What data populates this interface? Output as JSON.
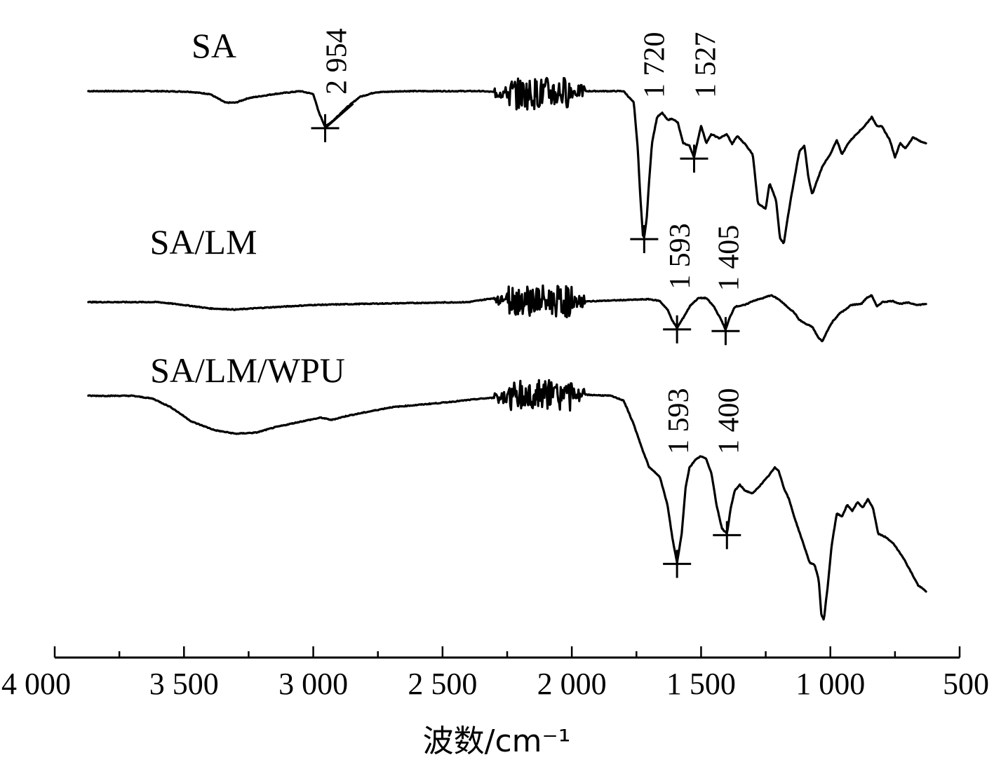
{
  "chart_data": {
    "type": "line",
    "xlabel": "波数/cm⁻¹",
    "xlim": [
      4000,
      500
    ],
    "x_ticks": [
      {
        "value": 4000,
        "label": "4 000"
      },
      {
        "value": 3500,
        "label": "3 500"
      },
      {
        "value": 3000,
        "label": "3 000"
      },
      {
        "value": 2500,
        "label": "2 500"
      },
      {
        "value": 2000,
        "label": "2 000"
      },
      {
        "value": 1500,
        "label": "1 500"
      },
      {
        "value": 1000,
        "label": "1 000"
      },
      {
        "value": 500,
        "label": "500"
      }
    ],
    "ylabel": "",
    "y_axis_shown": false,
    "series": [
      {
        "name": "SA",
        "baseline": 0.0,
        "points": [
          [
            3870,
            0
          ],
          [
            3600,
            0
          ],
          [
            3480,
            -0.01
          ],
          [
            3400,
            -0.05
          ],
          [
            3340,
            -0.2
          ],
          [
            3300,
            -0.2
          ],
          [
            3250,
            -0.12
          ],
          [
            3150,
            -0.05
          ],
          [
            3050,
            0
          ],
          [
            3000,
            -0.05
          ],
          [
            2980,
            -0.35
          ],
          [
            2954,
            -0.62
          ],
          [
            2920,
            -0.5
          ],
          [
            2880,
            -0.32
          ],
          [
            2820,
            -0.1
          ],
          [
            2760,
            -0.02
          ],
          [
            2650,
            0
          ],
          [
            2350,
            0
          ],
          [
            2200,
            -0.05
          ],
          [
            1950,
            0
          ],
          [
            1800,
            0
          ],
          [
            1760,
            -0.2
          ],
          [
            1745,
            -1.0
          ],
          [
            1735,
            -1.85
          ],
          [
            1725,
            -2.5
          ],
          [
            1720,
            -2.55
          ],
          [
            1710,
            -2.2
          ],
          [
            1700,
            -1.5
          ],
          [
            1690,
            -0.9
          ],
          [
            1670,
            -0.45
          ],
          [
            1650,
            -0.38
          ],
          [
            1630,
            -0.5
          ],
          [
            1610,
            -0.48
          ],
          [
            1590,
            -0.55
          ],
          [
            1570,
            -0.9
          ],
          [
            1545,
            -0.95
          ],
          [
            1527,
            -1.15
          ],
          [
            1515,
            -0.9
          ],
          [
            1500,
            -0.6
          ],
          [
            1480,
            -0.9
          ],
          [
            1460,
            -0.75
          ],
          [
            1430,
            -0.82
          ],
          [
            1400,
            -0.75
          ],
          [
            1380,
            -0.92
          ],
          [
            1360,
            -0.78
          ],
          [
            1330,
            -0.92
          ],
          [
            1300,
            -1.1
          ],
          [
            1280,
            -1.95
          ],
          [
            1250,
            -2.05
          ],
          [
            1235,
            -1.6
          ],
          [
            1210,
            -1.9
          ],
          [
            1195,
            -2.55
          ],
          [
            1180,
            -2.65
          ],
          [
            1165,
            -2.2
          ],
          [
            1150,
            -1.8
          ],
          [
            1120,
            -1.05
          ],
          [
            1100,
            -0.95
          ],
          [
            1085,
            -1.5
          ],
          [
            1070,
            -1.8
          ],
          [
            1055,
            -1.6
          ],
          [
            1030,
            -1.3
          ],
          [
            1000,
            -1.1
          ],
          [
            975,
            -0.85
          ],
          [
            955,
            -1.1
          ],
          [
            930,
            -0.9
          ],
          [
            900,
            -0.75
          ],
          [
            870,
            -0.62
          ],
          [
            840,
            -0.45
          ],
          [
            820,
            -0.6
          ],
          [
            800,
            -0.62
          ],
          [
            770,
            -0.85
          ],
          [
            750,
            -1.15
          ],
          [
            730,
            -0.9
          ],
          [
            710,
            -1.0
          ],
          [
            680,
            -0.8
          ],
          [
            650,
            -0.88
          ],
          [
            630,
            -0.9
          ]
        ],
        "noise_region": [
          2300,
          1950
        ]
      },
      {
        "name": "SA/LM",
        "baseline": -3.67,
        "points": [
          [
            3870,
            -3.67
          ],
          [
            3600,
            -3.67
          ],
          [
            3500,
            -3.72
          ],
          [
            3400,
            -3.78
          ],
          [
            3300,
            -3.8
          ],
          [
            3200,
            -3.77
          ],
          [
            3000,
            -3.72
          ],
          [
            2800,
            -3.7
          ],
          [
            2400,
            -3.67
          ],
          [
            2300,
            -3.6
          ],
          [
            2000,
            -3.67
          ],
          [
            1900,
            -3.65
          ],
          [
            1700,
            -3.62
          ],
          [
            1660,
            -3.65
          ],
          [
            1630,
            -3.8
          ],
          [
            1610,
            -4.0
          ],
          [
            1593,
            -4.12
          ],
          [
            1570,
            -3.95
          ],
          [
            1540,
            -3.72
          ],
          [
            1510,
            -3.6
          ],
          [
            1480,
            -3.6
          ],
          [
            1450,
            -3.75
          ],
          [
            1420,
            -4.0
          ],
          [
            1405,
            -4.15
          ],
          [
            1390,
            -3.95
          ],
          [
            1370,
            -3.75
          ],
          [
            1330,
            -3.72
          ],
          [
            1300,
            -3.65
          ],
          [
            1260,
            -3.6
          ],
          [
            1230,
            -3.55
          ],
          [
            1200,
            -3.62
          ],
          [
            1180,
            -3.7
          ],
          [
            1140,
            -3.85
          ],
          [
            1120,
            -3.98
          ],
          [
            1095,
            -4.05
          ],
          [
            1070,
            -4.1
          ],
          [
            1045,
            -4.3
          ],
          [
            1030,
            -4.35
          ],
          [
            1010,
            -4.15
          ],
          [
            990,
            -4.0
          ],
          [
            960,
            -3.85
          ],
          [
            940,
            -3.8
          ],
          [
            920,
            -3.72
          ],
          [
            880,
            -3.7
          ],
          [
            860,
            -3.6
          ],
          [
            840,
            -3.55
          ],
          [
            820,
            -3.75
          ],
          [
            800,
            -3.67
          ],
          [
            760,
            -3.65
          ],
          [
            730,
            -3.7
          ],
          [
            700,
            -3.68
          ],
          [
            660,
            -3.72
          ],
          [
            630,
            -3.7
          ]
        ],
        "noise_region": [
          2300,
          1950
        ]
      },
      {
        "name": "SA/LM/WPU",
        "baseline": -5.3,
        "points": [
          [
            3870,
            -5.3
          ],
          [
            3700,
            -5.3
          ],
          [
            3620,
            -5.35
          ],
          [
            3550,
            -5.5
          ],
          [
            3470,
            -5.75
          ],
          [
            3380,
            -5.9
          ],
          [
            3300,
            -5.96
          ],
          [
            3220,
            -5.94
          ],
          [
            3150,
            -5.85
          ],
          [
            3050,
            -5.75
          ],
          [
            2970,
            -5.68
          ],
          [
            2930,
            -5.72
          ],
          [
            2870,
            -5.65
          ],
          [
            2700,
            -5.5
          ],
          [
            2500,
            -5.42
          ],
          [
            2350,
            -5.35
          ],
          [
            2200,
            -5.3
          ],
          [
            1950,
            -5.28
          ],
          [
            1850,
            -5.3
          ],
          [
            1800,
            -5.38
          ],
          [
            1760,
            -5.8
          ],
          [
            1730,
            -6.2
          ],
          [
            1700,
            -6.55
          ],
          [
            1660,
            -6.7
          ],
          [
            1630,
            -7.2
          ],
          [
            1610,
            -7.8
          ],
          [
            1593,
            -8.2
          ],
          [
            1575,
            -7.7
          ],
          [
            1560,
            -6.9
          ],
          [
            1545,
            -6.55
          ],
          [
            1520,
            -6.4
          ],
          [
            1500,
            -6.35
          ],
          [
            1480,
            -6.4
          ],
          [
            1460,
            -6.65
          ],
          [
            1440,
            -7.2
          ],
          [
            1420,
            -7.6
          ],
          [
            1400,
            -7.7
          ],
          [
            1385,
            -7.25
          ],
          [
            1370,
            -6.95
          ],
          [
            1350,
            -6.85
          ],
          [
            1330,
            -6.95
          ],
          [
            1300,
            -7.0
          ],
          [
            1270,
            -6.85
          ],
          [
            1240,
            -6.7
          ],
          [
            1215,
            -6.55
          ],
          [
            1200,
            -6.6
          ],
          [
            1180,
            -6.9
          ],
          [
            1160,
            -7.1
          ],
          [
            1140,
            -7.4
          ],
          [
            1110,
            -7.8
          ],
          [
            1080,
            -8.2
          ],
          [
            1060,
            -8.25
          ],
          [
            1045,
            -8.5
          ],
          [
            1035,
            -9.1
          ],
          [
            1025,
            -9.2
          ],
          [
            1010,
            -8.6
          ],
          [
            995,
            -7.9
          ],
          [
            975,
            -7.35
          ],
          [
            955,
            -7.4
          ],
          [
            935,
            -7.2
          ],
          [
            915,
            -7.3
          ],
          [
            895,
            -7.15
          ],
          [
            875,
            -7.25
          ],
          [
            855,
            -7.1
          ],
          [
            835,
            -7.25
          ],
          [
            815,
            -7.7
          ],
          [
            790,
            -7.75
          ],
          [
            760,
            -7.85
          ],
          [
            720,
            -8.1
          ],
          [
            690,
            -8.35
          ],
          [
            660,
            -8.6
          ],
          [
            630,
            -8.7
          ]
        ],
        "noise_region": [
          2300,
          1950
        ]
      }
    ],
    "annotations": [
      {
        "series": "SA",
        "wavenumber": 2954,
        "label": "2 954"
      },
      {
        "series": "SA",
        "wavenumber": 1720,
        "label": "1 720"
      },
      {
        "series": "SA",
        "wavenumber": 1527,
        "label": "1 527"
      },
      {
        "series": "SA/LM",
        "wavenumber": 1593,
        "label": "1 593"
      },
      {
        "series": "SA/LM",
        "wavenumber": 1405,
        "label": "1 405"
      },
      {
        "series": "SA/LM/WPU",
        "wavenumber": 1593,
        "label": "1 593"
      },
      {
        "series": "SA/LM/WPU",
        "wavenumber": 1400,
        "label": "1 400"
      }
    ],
    "grid": false,
    "legend": "labels placed above each curve"
  }
}
